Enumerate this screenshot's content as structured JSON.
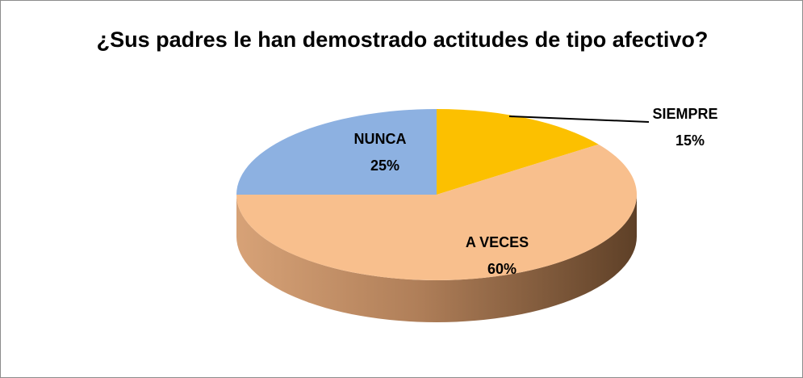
{
  "chart_data": {
    "type": "pie",
    "title": "¿Sus padres le han demostrado actitudes de tipo afectivo?",
    "categories": [
      "SIEMPRE",
      "A VECES",
      "NUNCA"
    ],
    "values": [
      15,
      60,
      25
    ],
    "value_labels": [
      "15%",
      "60%",
      "25%"
    ],
    "colors": [
      "#fcc000",
      "#f8bf8d",
      "#8db1e1"
    ]
  }
}
